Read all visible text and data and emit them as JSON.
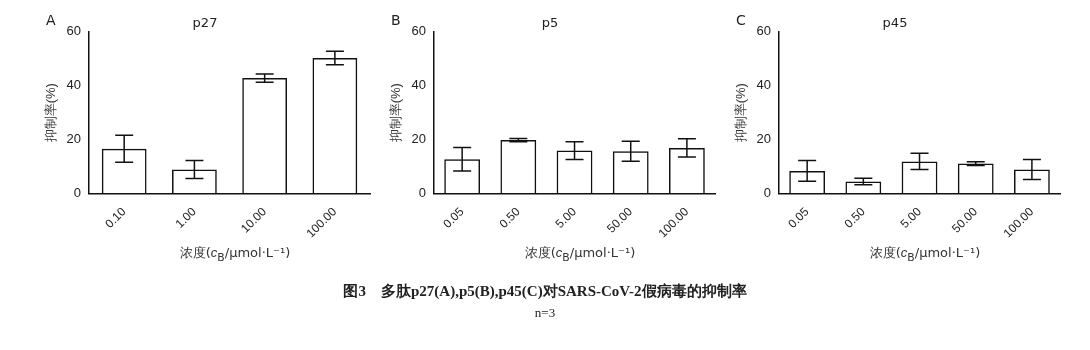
{
  "chart_data": [
    {
      "type": "bar",
      "title": "p27",
      "xlabel": "浓度(c$_{B}$/μmol·L⁻¹)",
      "ylabel": "抑制率(%)",
      "categories": [
        "0.10",
        "1.00",
        "10.00",
        "100.00"
      ],
      "values": [
        16.7,
        9,
        42.8,
        50.2
      ],
      "errors": [
        5,
        3.3,
        1.5,
        2.5
      ],
      "color": "#111111",
      "ylim": [
        0,
        60
      ],
      "yticks": [
        0,
        20,
        40,
        60
      ],
      "grid": false,
      "annotations": [
        "A",
        "图3　多肽p27(A),p5(B),p45(C)对SARS-CoV-2假病毒的抑制率",
        "n=3"
      ]
    },
    {
      "type": "bar",
      "title": "p5",
      "xlabel": "浓度(c$_{B}$/μmol·L⁻¹)",
      "ylabel": "抑制率(%)",
      "categories": [
        "0.05",
        "0.50",
        "5.00",
        "50.00",
        "100.00"
      ],
      "values": [
        12.8,
        19.9,
        16,
        15.8,
        17
      ],
      "errors": [
        4.3,
        0.6,
        3.3,
        3.7,
        3.4
      ],
      "color": "#111111",
      "ylim": [
        0,
        60
      ],
      "yticks": [
        0,
        20,
        40,
        60
      ],
      "grid": false,
      "annotations": [
        "B"
      ]
    },
    {
      "type": "bar",
      "title": "p45",
      "xlabel": "浓度(c$_{B}$/μmol·L⁻¹)",
      "ylabel": "抑制率(%)",
      "categories": [
        "0.05",
        "0.50",
        "5.00",
        "50.00",
        "100.00"
      ],
      "values": [
        8.5,
        4.6,
        12,
        11.2,
        9
      ],
      "errors": [
        3.8,
        1.2,
        3,
        0.7,
        3.7
      ],
      "color": "#111111",
      "ylim": [
        0,
        60
      ],
      "yticks": [
        0,
        20,
        40,
        60
      ],
      "grid": false,
      "annotations": [
        "C"
      ]
    }
  ]
}
